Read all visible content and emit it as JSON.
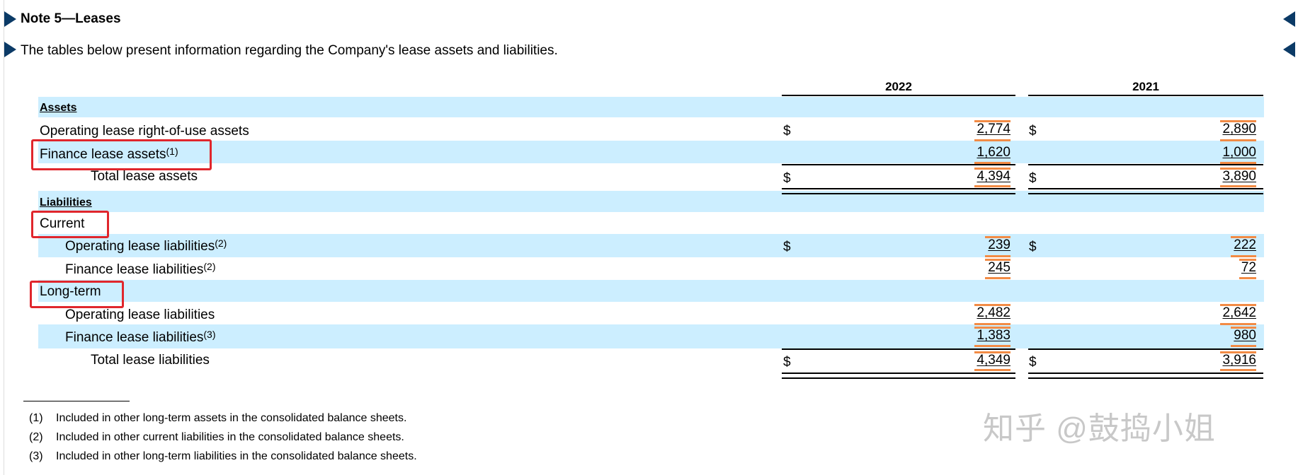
{
  "title": "Note 5—Leases",
  "intro": "The tables below present information regarding the Company's lease assets and liabilities.",
  "years": [
    "2022",
    "2021"
  ],
  "currency_symbol": "$",
  "sections": {
    "assets": "Assets",
    "liabilities": "Liabilities"
  },
  "rows": {
    "op_rou": {
      "label": "Operating lease right-of-use assets",
      "v2022": "2,774",
      "v2021": "2,890"
    },
    "fin_assets": {
      "label": "Finance lease assets",
      "note": "(1)",
      "v2022": "1,620",
      "v2021": "1,000"
    },
    "total_assets": {
      "label": "Total lease assets",
      "v2022": "4,394",
      "v2021": "3,890"
    },
    "current": {
      "label": "Current"
    },
    "cur_op": {
      "label": "Operating lease liabilities",
      "note": "(2)",
      "v2022": "239",
      "v2021": "222"
    },
    "cur_fin": {
      "label": "Finance lease liabilities",
      "note": "(2)",
      "v2022": "245",
      "v2021": "72"
    },
    "longterm": {
      "label": "Long-term"
    },
    "lt_op": {
      "label": "Operating lease liabilities",
      "v2022": "2,482",
      "v2021": "2,642"
    },
    "lt_fin": {
      "label": "Finance lease liabilities",
      "note": "(3)",
      "v2022": "1,383",
      "v2021": "980"
    },
    "total_liab": {
      "label": "Total lease liabilities",
      "v2022": "4,349",
      "v2021": "3,916"
    }
  },
  "footnotes": [
    {
      "tag": "(1)",
      "text": "Included in other long-term assets in the consolidated balance sheets."
    },
    {
      "tag": "(2)",
      "text": "Included in other current liabilities in the consolidated balance sheets."
    },
    {
      "tag": "(3)",
      "text": "Included in other long-term liabilities in the consolidated balance sheets."
    }
  ],
  "watermark": "知乎 @鼓捣小姐",
  "colors": {
    "band": "#cceeff",
    "highlight": "#f28b45",
    "annotation_box": "#e0262c",
    "arrow": "#0b3a66"
  }
}
